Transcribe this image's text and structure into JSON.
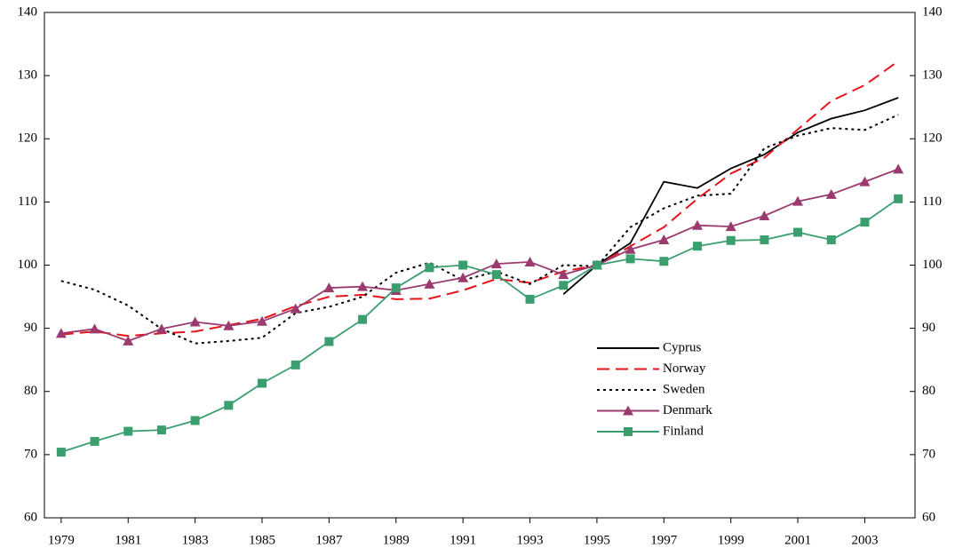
{
  "chart_data": {
    "type": "line",
    "x": [
      1979,
      1980,
      1981,
      1982,
      1983,
      1984,
      1985,
      1986,
      1987,
      1988,
      1989,
      1990,
      1991,
      1992,
      1993,
      1994,
      1995,
      1996,
      1997,
      1998,
      1999,
      2000,
      2001,
      2002,
      2003,
      2004
    ],
    "series": [
      {
        "name": "Cyprus",
        "color": "#000000",
        "dash": "solid",
        "marker": "none",
        "values": [
          null,
          null,
          null,
          null,
          null,
          null,
          null,
          null,
          null,
          null,
          null,
          null,
          null,
          null,
          null,
          95.4,
          100,
          103.5,
          113.2,
          112.2,
          115.3,
          117.5,
          121,
          123.2,
          124.5,
          126.5
        ]
      },
      {
        "name": "Norway",
        "color": "#e8141b",
        "dash": "dashed",
        "marker": "none",
        "values": [
          89,
          89.5,
          88.8,
          89.2,
          89.5,
          90.5,
          91.5,
          93.5,
          95,
          95.3,
          94.6,
          94.7,
          96,
          97.8,
          97.2,
          99,
          100,
          103,
          106,
          110.5,
          114.5,
          117,
          121.5,
          126,
          128.5,
          132.3
        ]
      },
      {
        "name": "Sweden",
        "color": "#000000",
        "dash": "dotted",
        "marker": "none",
        "values": [
          97.5,
          96.1,
          93.6,
          89.9,
          87.6,
          88,
          88.5,
          92.4,
          93.4,
          95,
          98.8,
          100.4,
          97.6,
          99,
          97,
          100,
          99.8,
          106,
          109,
          111,
          111.3,
          118.5,
          120.5,
          121.7,
          121.4,
          123.8
        ]
      },
      {
        "name": "Denmark",
        "color": "#9b3a6e",
        "dash": "solid",
        "marker": "triangle",
        "values": [
          89.2,
          89.9,
          88,
          89.9,
          91,
          90.4,
          91.1,
          93.1,
          96.4,
          96.6,
          96,
          97,
          98,
          100.2,
          100.5,
          98.5,
          100,
          102.5,
          104,
          106.3,
          106.1,
          107.8,
          110.1,
          111.2,
          113.2,
          115.2
        ]
      },
      {
        "name": "Finland",
        "color": "#3a9e6e",
        "dash": "solid",
        "marker": "square",
        "values": [
          70.4,
          72.1,
          73.7,
          73.9,
          75.4,
          77.8,
          81.3,
          84.2,
          87.9,
          91.4,
          96.4,
          99.6,
          100,
          98.5,
          94.6,
          96.8,
          100,
          101,
          100.6,
          103,
          103.9,
          104,
          105.2,
          104,
          106.8,
          110.5
        ]
      }
    ],
    "xlim": [
      1978.5,
      2004.5
    ],
    "xticks": [
      1979,
      1981,
      1983,
      1985,
      1987,
      1989,
      1991,
      1993,
      1995,
      1997,
      1999,
      2001,
      2003
    ],
    "ylim": [
      60,
      140
    ],
    "yticks": [
      60,
      70,
      80,
      90,
      100,
      110,
      120,
      130,
      140
    ],
    "y2lim": [
      60,
      140
    ],
    "y2ticks": [
      60,
      70,
      80,
      90,
      100,
      110,
      120,
      130,
      140
    ],
    "grid": false,
    "legend": "center right"
  }
}
